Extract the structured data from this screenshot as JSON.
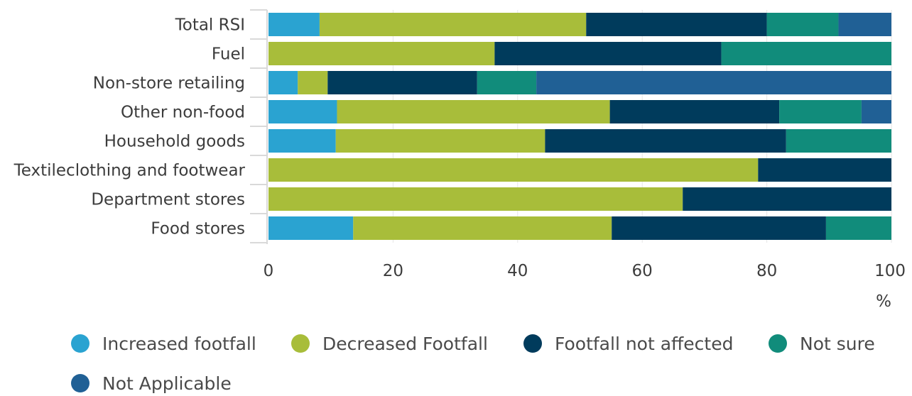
{
  "chart_data": {
    "type": "bar",
    "orientation": "horizontal",
    "stacked": true,
    "categories": [
      "Total RSI",
      "Fuel",
      "Non-store retailing",
      "Other non-food",
      "Household goods",
      "Textileclothing and footwear",
      "Department stores",
      "Food stores"
    ],
    "series": [
      {
        "name": "Increased footfall",
        "color": "#2aa3d1",
        "values": [
          8.2,
          0,
          4.7,
          11,
          10.8,
          0,
          0,
          13.6
        ]
      },
      {
        "name": "Decreased Footfall",
        "color": "#a8bd3a",
        "values": [
          42.8,
          36.3,
          4.8,
          43.8,
          33.6,
          78.6,
          66.5,
          41.5
        ]
      },
      {
        "name": "Footfall not affected",
        "color": "#003b5c",
        "values": [
          29,
          36.4,
          24,
          27.2,
          38.7,
          21.4,
          33.5,
          34.4
        ]
      },
      {
        "name": "Not sure",
        "color": "#118c7b",
        "values": [
          11.5,
          27.3,
          9.5,
          13.2,
          16.9,
          0,
          0,
          10.5
        ]
      },
      {
        "name": "Not Applicable",
        "color": "#206095",
        "values": [
          8.5,
          0,
          57,
          4.8,
          0,
          0,
          0,
          0
        ]
      }
    ],
    "xticks": [
      "0",
      "20",
      "40",
      "60",
      "80",
      "100"
    ],
    "xlim": [
      0,
      100
    ],
    "xlabel": "%",
    "ylabel": "",
    "title": "",
    "grid": true,
    "legend_placement": "bottom"
  }
}
